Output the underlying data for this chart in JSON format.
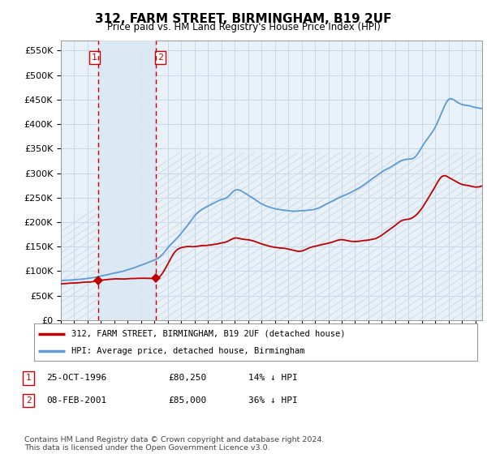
{
  "title": "312, FARM STREET, BIRMINGHAM, B19 2UF",
  "subtitle": "Price paid vs. HM Land Registry's House Price Index (HPI)",
  "ylim": [
    0,
    570000
  ],
  "yticks": [
    0,
    50000,
    100000,
    150000,
    200000,
    250000,
    300000,
    350000,
    400000,
    450000,
    500000,
    550000
  ],
  "ytick_labels": [
    "£0",
    "£50K",
    "£100K",
    "£150K",
    "£200K",
    "£250K",
    "£300K",
    "£350K",
    "£400K",
    "£450K",
    "£500K",
    "£550K"
  ],
  "hpi_color": "#5b9bd5",
  "price_color": "#c00000",
  "vline_color": "#cc0000",
  "grid_color": "#c8d8e8",
  "bg_color": "#e8f0f8",
  "shade_color": "#dce8f4",
  "hatch_color": "#c8d0dc",
  "sale1_date_x": 1996.82,
  "sale1_price": 80250,
  "sale2_date_x": 2001.1,
  "sale2_price": 85000,
  "legend_label1": "312, FARM STREET, BIRMINGHAM, B19 2UF (detached house)",
  "legend_label2": "HPI: Average price, detached house, Birmingham",
  "table_row1": [
    "1",
    "25-OCT-1996",
    "£80,250",
    "14% ↓ HPI"
  ],
  "table_row2": [
    "2",
    "08-FEB-2001",
    "£85,000",
    "36% ↓ HPI"
  ],
  "footer": "Contains HM Land Registry data © Crown copyright and database right 2024.\nThis data is licensed under the Open Government Licence v3.0.",
  "xmin": 1994,
  "xmax": 2025.5
}
